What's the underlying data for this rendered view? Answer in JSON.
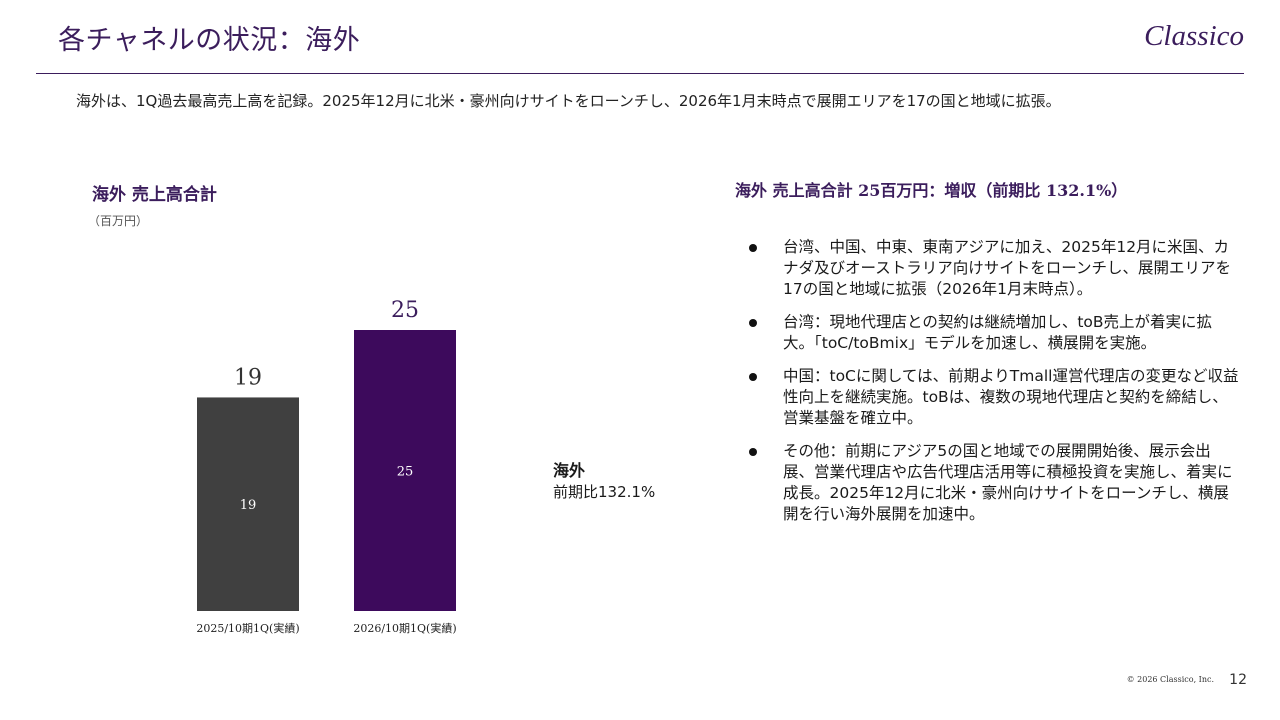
{
  "header": {
    "title": "各チャネルの状況：海外",
    "logo_text": "Classico"
  },
  "summary": "海外は、1Q過去最高売上高を記録。2025年12月に北米・豪州向けサイトをローンチし、2026年1月末時点で展開エリアを17の国と地域に拡張。",
  "colors": {
    "brand": "#3b1d5c",
    "bar_prev": "#404040",
    "bar_curr": "#3d0a5c"
  },
  "chart_data": {
    "type": "bar",
    "title": "海外 売上高合計",
    "unit": "（百万円）",
    "categories": [
      "2025/10期1Q(実績)",
      "2026/10期1Q(実績)"
    ],
    "values": [
      19,
      25
    ],
    "labels": [
      "19",
      "25"
    ],
    "ylim": [
      0,
      25
    ],
    "grid": false
  },
  "side_note": {
    "title": "海外",
    "yoy": "前期比132.1%"
  },
  "right_panel": {
    "heading": "海外 売上高合計 25百万円：増収（前期比 132.1%）",
    "bullets": [
      "台湾、中国、中東、東南アジアに加え、2025年12月に米国、カナダ及びオーストラリア向けサイトをローンチし、展開エリアを17の国と地域に拡張（2026年1月末時点）。",
      "台湾：現地代理店との契約は継続増加し、toB売上が着実に拡大。「toC/toBmix」モデルを加速し、横展開を実施。",
      "中国：toCに関しては、前期よりTmall運営代理店の変更など収益性向上を継続実施。toBは、複数の現地代理店と契約を締結し、営業基盤を確立中。",
      "その他：前期にアジア5の国と地域での展開開始後、展示会出展、営業代理店や広告代理店活用等に積極投資を実施し、着実に成長。2025年12月に北米・豪州向けサイトをローンチし、横展開を行い海外展開を加速中。"
    ]
  },
  "footer": {
    "copyright": "© 2026 Classico, Inc.",
    "page_number": "12"
  }
}
